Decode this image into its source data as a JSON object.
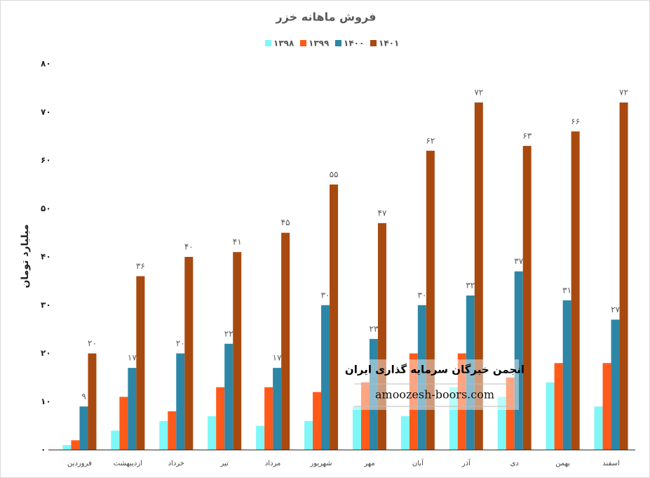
{
  "chart_data": {
    "type": "bar",
    "title": "فروش ماهانه خزر",
    "y_label": "میلیارد تومان",
    "categories": [
      "فروردین",
      "اردیبهشت",
      "خرداد",
      "تیر",
      "مرداد",
      "شهریور",
      "مهر",
      "آبان",
      "آذر",
      "دی",
      "بهمن",
      "اسفند"
    ],
    "series": [
      {
        "name": "۱۳۹۸",
        "color": "#7ff7f7",
        "values": [
          1,
          4,
          6,
          7,
          5,
          6,
          9,
          7,
          13,
          11,
          14,
          9
        ]
      },
      {
        "name": "۱۳۹۹",
        "color": "#ff5a1a",
        "values": [
          2,
          11,
          8,
          13,
          13,
          12,
          14,
          20,
          20,
          15,
          18,
          18
        ]
      },
      {
        "name": "۱۴۰۰",
        "color": "#2e86a6",
        "values": [
          9,
          17,
          20,
          22,
          17,
          30,
          23,
          30,
          32,
          37,
          31,
          27
        ],
        "value_labels": [
          "۹",
          "۱۷",
          "۲۰",
          "۲۲",
          "۱۷",
          "۳۰",
          "۲۳",
          "۳۰",
          "۳۲",
          "۳۷",
          "۳۱",
          "۲۷"
        ]
      },
      {
        "name": "۱۴۰۱",
        "color": "#a84a0f",
        "values": [
          20,
          36,
          40,
          41,
          45,
          55,
          47,
          62,
          72,
          63,
          66,
          72
        ],
        "value_labels": [
          "۲۰",
          "۳۶",
          "۴۰",
          "۴۱",
          "۴۵",
          "۵۵",
          "۴۷",
          "۶۲",
          "۷۲",
          "۶۳",
          "۶۶",
          "۷۲"
        ]
      }
    ],
    "ylim": [
      0,
      80
    ],
    "yticks": [
      {
        "value": 0,
        "label": "۰"
      },
      {
        "value": 10,
        "label": "۱۰"
      },
      {
        "value": 20,
        "label": "۲۰"
      },
      {
        "value": 30,
        "label": "۳۰"
      },
      {
        "value": 40,
        "label": "۴۰"
      },
      {
        "value": 50,
        "label": "۵۰"
      },
      {
        "value": 60,
        "label": "۶۰"
      },
      {
        "value": 70,
        "label": "۷۰"
      },
      {
        "value": 80,
        "label": "۸۰"
      }
    ],
    "legend": "top",
    "annotations": [
      "انجمن خبرگان سرمایه گذاری ایران",
      "amoozesh-boors.com"
    ]
  }
}
